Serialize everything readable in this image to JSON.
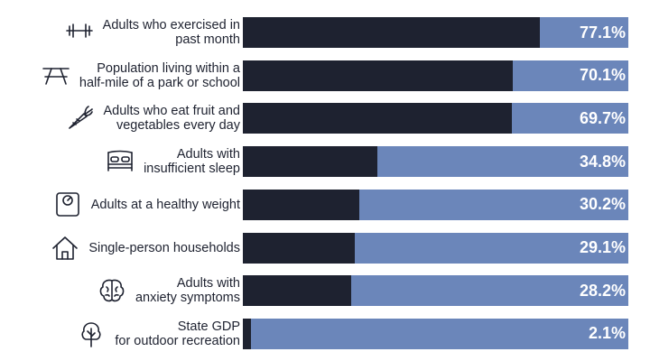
{
  "colors": {
    "filled": "#1e2230",
    "remaining": "#6b86ba",
    "value_text": "#ffffff",
    "label_text": "#1e2230"
  },
  "chart_data": {
    "type": "bar",
    "orientation": "horizontal",
    "title": "",
    "xlabel": "",
    "ylabel": "",
    "xlim": [
      0,
      100
    ],
    "unit": "%",
    "categories": [
      "Adults who exercised in past month",
      "Population living within a half-mile of a park or school",
      "Adults who eat fruit and vegetables every day",
      "Adults with insufficient sleep",
      "Adults at a healthy weight",
      "Single-person households",
      "Adults with anxiety symptoms",
      "State GDP for outdoor recreation"
    ],
    "values": [
      77.1,
      70.1,
      69.7,
      34.8,
      30.2,
      29.1,
      28.2,
      2.1
    ],
    "rows": [
      {
        "label_lines": [
          "Adults who exercised in",
          "past month"
        ],
        "value": 77.1,
        "value_label": "77.1%",
        "icon": "dumbbell-icon"
      },
      {
        "label_lines": [
          "Population living within a",
          "half-mile of a park or school"
        ],
        "value": 70.1,
        "value_label": "70.1%",
        "icon": "picnic-table-icon"
      },
      {
        "label_lines": [
          "Adults who eat fruit and",
          "vegetables every day"
        ],
        "value": 69.7,
        "value_label": "69.7%",
        "icon": "carrot-icon"
      },
      {
        "label_lines": [
          "Adults with",
          "insufficient sleep"
        ],
        "value": 34.8,
        "value_label": "34.8%",
        "icon": "bed-icon"
      },
      {
        "label_lines": [
          "Adults at a healthy weight"
        ],
        "value": 30.2,
        "value_label": "30.2%",
        "icon": "scale-icon"
      },
      {
        "label_lines": [
          "Single-person households"
        ],
        "value": 29.1,
        "value_label": "29.1%",
        "icon": "house-icon"
      },
      {
        "label_lines": [
          "Adults with",
          "anxiety symptoms"
        ],
        "value": 28.2,
        "value_label": "28.2%",
        "icon": "brain-icon"
      },
      {
        "label_lines": [
          "State GDP",
          "for outdoor recreation"
        ],
        "value": 2.1,
        "value_label": "2.1%",
        "icon": "tree-icon"
      }
    ]
  }
}
